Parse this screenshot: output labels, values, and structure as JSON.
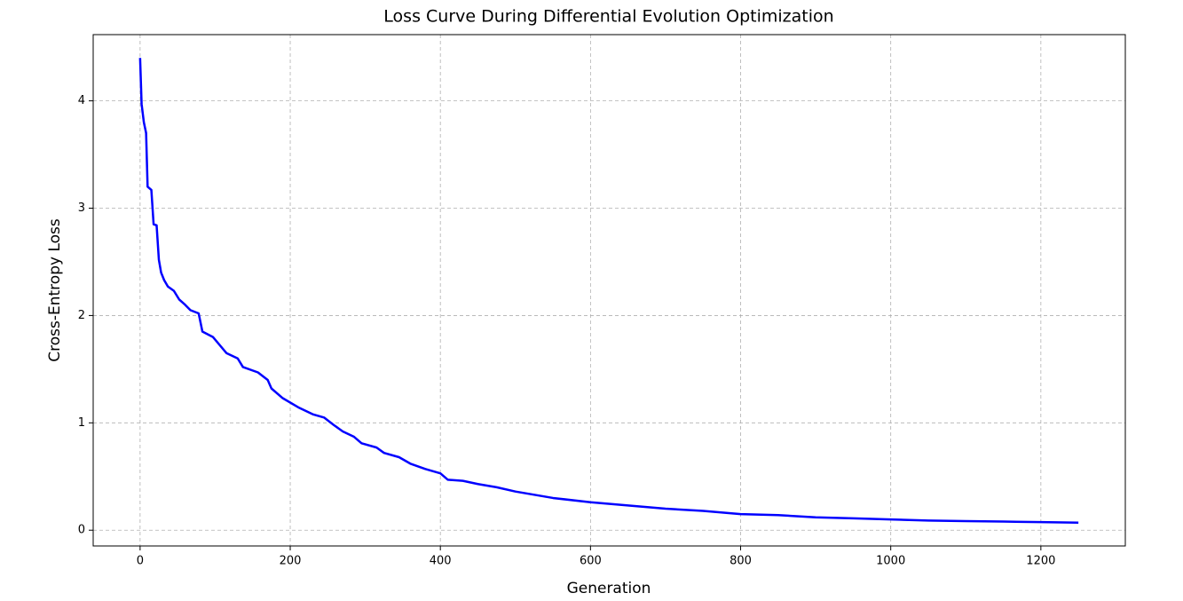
{
  "chart_data": {
    "type": "line",
    "title": "Loss Curve During Differential Evolution Optimization",
    "x_label": "Generation",
    "y_label": "Cross-Entropy Loss",
    "x": [
      0,
      2,
      5,
      8,
      10,
      15,
      18,
      22,
      25,
      28,
      32,
      37,
      45,
      52,
      60,
      67,
      78,
      83,
      97,
      115,
      130,
      137,
      157,
      170,
      175,
      190,
      212,
      230,
      245,
      258,
      270,
      285,
      295,
      315,
      325,
      345,
      360,
      380,
      400,
      410,
      430,
      450,
      475,
      500,
      550,
      600,
      650,
      700,
      750,
      800,
      850,
      900,
      950,
      1000,
      1050,
      1100,
      1150,
      1200,
      1250
    ],
    "series": [
      {
        "name": "Loss",
        "color": "#0000ff",
        "values": [
          4.4,
          3.97,
          3.8,
          3.7,
          3.2,
          3.17,
          2.85,
          2.84,
          2.52,
          2.4,
          2.33,
          2.27,
          2.23,
          2.15,
          2.1,
          2.05,
          2.02,
          1.85,
          1.8,
          1.65,
          1.6,
          1.52,
          1.47,
          1.4,
          1.32,
          1.23,
          1.14,
          1.08,
          1.05,
          0.98,
          0.92,
          0.87,
          0.81,
          0.77,
          0.72,
          0.68,
          0.62,
          0.57,
          0.53,
          0.47,
          0.46,
          0.43,
          0.4,
          0.36,
          0.3,
          0.26,
          0.23,
          0.2,
          0.18,
          0.15,
          0.14,
          0.12,
          0.11,
          0.1,
          0.09,
          0.085,
          0.08,
          0.075,
          0.07
        ]
      }
    ],
    "xlim": [
      -62.5,
      1312.5
    ],
    "ylim": [
      -0.147,
      4.617
    ],
    "xticks": [
      0,
      200,
      400,
      600,
      800,
      1000,
      1200
    ],
    "yticks": [
      0,
      1,
      2,
      3,
      4
    ],
    "grid": true
  }
}
